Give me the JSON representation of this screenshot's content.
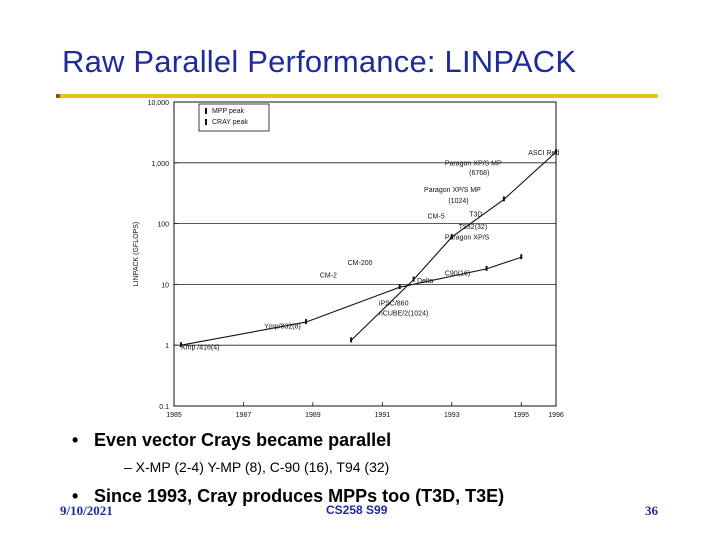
{
  "slide": {
    "title": "Raw Parallel Performance: LINPACK",
    "bullets": [
      "Even vector Crays became parallel",
      "Since 1993, Cray produces MPPs too (T3D, T3E)"
    ],
    "sub_bullets": [
      "– X-MP (2-4) Y-MP (8), C-90 (16), T94 (32)"
    ],
    "bullet_glyph": "•",
    "footer": {
      "date": "9/10/2021",
      "course": "CS258 S99",
      "page": "36"
    },
    "colors": {
      "title": "#1f2a9b",
      "rule": "#e5c21a",
      "footer": "#1f2a9b"
    }
  },
  "chart_data": {
    "type": "line",
    "ylabel": "LINPACK (GFLOPS)",
    "yscale": "log",
    "ylim": [
      0.1,
      10000
    ],
    "xlim": [
      1985,
      1996
    ],
    "x_ticks": [
      "1985",
      "1987",
      "1989",
      "1991",
      "1993",
      "1995",
      "1996"
    ],
    "y_ticks": [
      "0.1",
      "1",
      "10",
      "100",
      "1,000",
      "10,000"
    ],
    "grid": "horizontal",
    "legend": {
      "position": "top-left",
      "entries": [
        "MPP peak",
        "CRAY peak"
      ]
    },
    "series": [
      {
        "name": "MPP peak",
        "x": [
          1990.1,
          1991.9,
          1993.0,
          1994.5,
          1996.0
        ],
        "y": [
          1.2,
          12,
          60,
          250,
          1500
        ]
      },
      {
        "name": "CRAY peak",
        "x": [
          1985.2,
          1988.8,
          1991.5,
          1994.0,
          1995.0
        ],
        "y": [
          1.0,
          2.4,
          9,
          18,
          28
        ]
      }
    ],
    "annotations": [
      {
        "text": "Xmp /416(4)",
        "x": 1985.2,
        "y": 0.85
      },
      {
        "text": "Ymp/832(8)",
        "x": 1987.6,
        "y": 1.9
      },
      {
        "text": "CM-2",
        "x": 1989.2,
        "y": 13
      },
      {
        "text": "CM-200",
        "x": 1990.0,
        "y": 21
      },
      {
        "text": "CM-5",
        "x": 1992.3,
        "y": 122
      },
      {
        "text": "iPSC/860",
        "x": 1990.9,
        "y": 4.5
      },
      {
        "text": "nCUBE/2(1024)",
        "x": 1990.9,
        "y": 3.1
      },
      {
        "text": "Delta",
        "x": 1992.0,
        "y": 10.5
      },
      {
        "text": "C90(16)",
        "x": 1992.8,
        "y": 14
      },
      {
        "text": "Paragon XP/S",
        "x": 1992.8,
        "y": 55
      },
      {
        "text": "T932(32)",
        "x": 1993.2,
        "y": 82
      },
      {
        "text": "T3D",
        "x": 1993.5,
        "y": 130
      },
      {
        "text": "Paragon XP/S MP",
        "x": 1992.2,
        "y": 330
      },
      {
        "text": "(1024)",
        "x": 1992.9,
        "y": 220
      },
      {
        "text": "Paragon XP/S MP",
        "x": 1992.8,
        "y": 900
      },
      {
        "text": "(6768)",
        "x": 1993.5,
        "y": 630
      },
      {
        "text": "ASCI Red",
        "x": 1995.2,
        "y": 1350
      }
    ]
  }
}
